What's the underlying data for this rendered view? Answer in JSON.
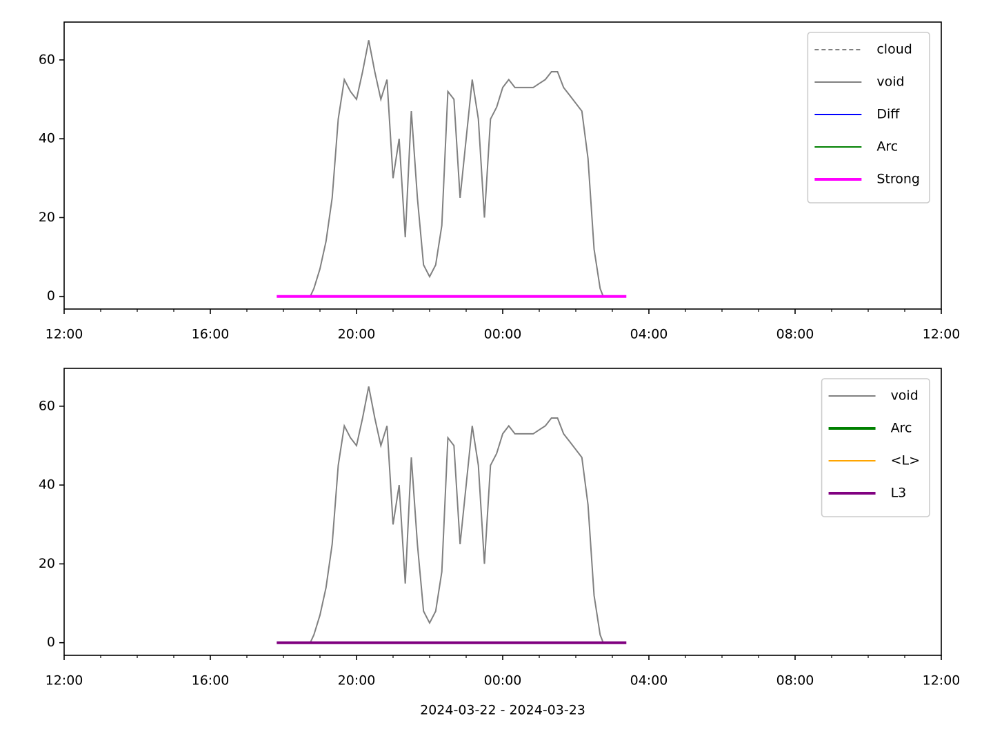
{
  "chart_data": [
    {
      "type": "line",
      "legend": "upper right",
      "xlim": [
        "2024-03-22T12:00",
        "2024-03-23T12:00"
      ],
      "xticks": [
        {
          "value": "2024-03-22T12:00",
          "label": "12:00"
        },
        {
          "value": "2024-03-22T16:00",
          "label": "16:00"
        },
        {
          "value": "2024-03-22T20:00",
          "label": "20:00"
        },
        {
          "value": "2024-03-23T00:00",
          "label": "00:00"
        },
        {
          "value": "2024-03-23T04:00",
          "label": "04:00"
        },
        {
          "value": "2024-03-23T08:00",
          "label": "08:00"
        },
        {
          "value": "2024-03-23T12:00",
          "label": "12:00"
        }
      ],
      "xminorticks": [
        "2024-03-22T13:00",
        "2024-03-22T14:00",
        "2024-03-22T15:00",
        "2024-03-22T17:00",
        "2024-03-22T18:00",
        "2024-03-22T19:00",
        "2024-03-22T21:00",
        "2024-03-22T22:00",
        "2024-03-22T23:00",
        "2024-03-23T01:00",
        "2024-03-23T02:00",
        "2024-03-23T03:00",
        "2024-03-23T05:00",
        "2024-03-23T06:00",
        "2024-03-23T07:00",
        "2024-03-23T09:00",
        "2024-03-23T10:00",
        "2024-03-23T11:00"
      ],
      "ylim": [
        -3.2,
        69.6
      ],
      "yticks": [
        0,
        20,
        40,
        60
      ],
      "series": [
        {
          "name": "cloud",
          "color": "#808080",
          "linestyle": "dashed",
          "linewidth": 2,
          "x": [],
          "values": []
        },
        {
          "name": "void",
          "color": "#808080",
          "linestyle": "solid",
          "linewidth": 2,
          "x": [
            "2024-03-22T18:44",
            "2024-03-22T18:50",
            "2024-03-22T19:00",
            "2024-03-22T19:10",
            "2024-03-22T19:20",
            "2024-03-22T19:30",
            "2024-03-22T19:40",
            "2024-03-22T19:50",
            "2024-03-22T20:00",
            "2024-03-22T20:10",
            "2024-03-22T20:20",
            "2024-03-22T20:30",
            "2024-03-22T20:40",
            "2024-03-22T20:50",
            "2024-03-22T21:00",
            "2024-03-22T21:10",
            "2024-03-22T21:20",
            "2024-03-22T21:30",
            "2024-03-22T21:40",
            "2024-03-22T21:50",
            "2024-03-22T22:00",
            "2024-03-22T22:10",
            "2024-03-22T22:20",
            "2024-03-22T22:30",
            "2024-03-22T22:40",
            "2024-03-22T22:50",
            "2024-03-22T23:00",
            "2024-03-22T23:10",
            "2024-03-22T23:20",
            "2024-03-22T23:30",
            "2024-03-22T23:40",
            "2024-03-22T23:50",
            "2024-03-23T00:00",
            "2024-03-23T00:10",
            "2024-03-23T00:20",
            "2024-03-23T00:30",
            "2024-03-23T00:40",
            "2024-03-23T00:50",
            "2024-03-23T01:00",
            "2024-03-23T01:10",
            "2024-03-23T01:20",
            "2024-03-23T01:30",
            "2024-03-23T01:40",
            "2024-03-23T01:50",
            "2024-03-23T02:00",
            "2024-03-23T02:10",
            "2024-03-23T02:20",
            "2024-03-23T02:30",
            "2024-03-23T02:40",
            "2024-03-23T02:45"
          ],
          "values": [
            0,
            2,
            7,
            14,
            25,
            45,
            55,
            52,
            50,
            57,
            65,
            57,
            50,
            55,
            30,
            40,
            15,
            47,
            25,
            8,
            5,
            8,
            18,
            52,
            50,
            25,
            40,
            55,
            45,
            20,
            45,
            48,
            53,
            55,
            53,
            53,
            53,
            53,
            54,
            55,
            57,
            57,
            53,
            51,
            49,
            47,
            35,
            12,
            2,
            0
          ]
        },
        {
          "name": "Diff",
          "color": "#0000ff",
          "linestyle": "solid",
          "linewidth": 2,
          "x": [],
          "values": []
        },
        {
          "name": "Arc",
          "color": "#008000",
          "linestyle": "solid",
          "linewidth": 2,
          "x": [],
          "values": []
        },
        {
          "name": "Strong",
          "color": "#ff00ff",
          "linestyle": "solid",
          "linewidth": 4,
          "x": [
            "2024-03-22T17:49",
            "2024-03-23T03:23"
          ],
          "values": [
            0,
            0
          ]
        }
      ]
    },
    {
      "type": "line",
      "legend": "upper right",
      "xlabel": "2024-03-22 - 2024-03-23",
      "xlim": [
        "2024-03-22T12:00",
        "2024-03-23T12:00"
      ],
      "xticks": [
        {
          "value": "2024-03-22T12:00",
          "label": "12:00"
        },
        {
          "value": "2024-03-22T16:00",
          "label": "16:00"
        },
        {
          "value": "2024-03-22T20:00",
          "label": "20:00"
        },
        {
          "value": "2024-03-23T00:00",
          "label": "00:00"
        },
        {
          "value": "2024-03-23T04:00",
          "label": "04:00"
        },
        {
          "value": "2024-03-23T08:00",
          "label": "08:00"
        },
        {
          "value": "2024-03-23T12:00",
          "label": "12:00"
        }
      ],
      "xminorticks": [
        "2024-03-22T13:00",
        "2024-03-22T14:00",
        "2024-03-22T15:00",
        "2024-03-22T17:00",
        "2024-03-22T18:00",
        "2024-03-22T19:00",
        "2024-03-22T21:00",
        "2024-03-22T22:00",
        "2024-03-22T23:00",
        "2024-03-23T01:00",
        "2024-03-23T02:00",
        "2024-03-23T03:00",
        "2024-03-23T05:00",
        "2024-03-23T06:00",
        "2024-03-23T07:00",
        "2024-03-23T09:00",
        "2024-03-23T10:00",
        "2024-03-23T11:00"
      ],
      "ylim": [
        -3.2,
        69.6
      ],
      "yticks": [
        0,
        20,
        40,
        60
      ],
      "series": [
        {
          "name": "void",
          "color": "#808080",
          "linestyle": "solid",
          "linewidth": 2,
          "x": [
            "2024-03-22T18:44",
            "2024-03-22T18:50",
            "2024-03-22T19:00",
            "2024-03-22T19:10",
            "2024-03-22T19:20",
            "2024-03-22T19:30",
            "2024-03-22T19:40",
            "2024-03-22T19:50",
            "2024-03-22T20:00",
            "2024-03-22T20:10",
            "2024-03-22T20:20",
            "2024-03-22T20:30",
            "2024-03-22T20:40",
            "2024-03-22T20:50",
            "2024-03-22T21:00",
            "2024-03-22T21:10",
            "2024-03-22T21:20",
            "2024-03-22T21:30",
            "2024-03-22T21:40",
            "2024-03-22T21:50",
            "2024-03-22T22:00",
            "2024-03-22T22:10",
            "2024-03-22T22:20",
            "2024-03-22T22:30",
            "2024-03-22T22:40",
            "2024-03-22T22:50",
            "2024-03-22T23:00",
            "2024-03-22T23:10",
            "2024-03-22T23:20",
            "2024-03-22T23:30",
            "2024-03-22T23:40",
            "2024-03-22T23:50",
            "2024-03-23T00:00",
            "2024-03-23T00:10",
            "2024-03-23T00:20",
            "2024-03-23T00:30",
            "2024-03-23T00:40",
            "2024-03-23T00:50",
            "2024-03-23T01:00",
            "2024-03-23T01:10",
            "2024-03-23T01:20",
            "2024-03-23T01:30",
            "2024-03-23T01:40",
            "2024-03-23T01:50",
            "2024-03-23T02:00",
            "2024-03-23T02:10",
            "2024-03-23T02:20",
            "2024-03-23T02:30",
            "2024-03-23T02:40",
            "2024-03-23T02:45"
          ],
          "values": [
            0,
            2,
            7,
            14,
            25,
            45,
            55,
            52,
            50,
            57,
            65,
            57,
            50,
            55,
            30,
            40,
            15,
            47,
            25,
            8,
            5,
            8,
            18,
            52,
            50,
            25,
            40,
            55,
            45,
            20,
            45,
            48,
            53,
            55,
            53,
            53,
            53,
            53,
            54,
            55,
            57,
            57,
            53,
            51,
            49,
            47,
            35,
            12,
            2,
            0
          ]
        },
        {
          "name": "Arc",
          "color": "#008000",
          "linestyle": "solid",
          "linewidth": 4,
          "x": [],
          "values": []
        },
        {
          "name": "<L>",
          "color": "#ffa500",
          "linestyle": "solid",
          "linewidth": 2,
          "x": [],
          "values": []
        },
        {
          "name": "L3",
          "color": "#800080",
          "linestyle": "solid",
          "linewidth": 4,
          "x": [
            "2024-03-22T17:49",
            "2024-03-23T03:23"
          ],
          "values": [
            0,
            0
          ]
        }
      ]
    }
  ]
}
